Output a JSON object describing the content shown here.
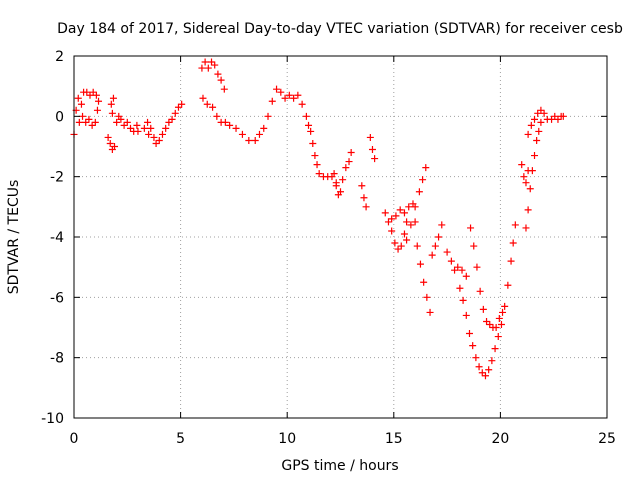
{
  "chart_data": {
    "type": "scatter",
    "title": "Day 184 of 2017, Sidereal Day-to-day VTEC variation (SDTVAR) for receiver cesb",
    "xlabel": "GPS time / hours",
    "ylabel": "SDTVAR / TECUs",
    "xlim": [
      0,
      25
    ],
    "ylim": [
      -10,
      2
    ],
    "xticks": [
      0,
      5,
      10,
      15,
      20,
      25
    ],
    "yticks": [
      -10,
      -8,
      -6,
      -4,
      -2,
      0,
      2
    ],
    "grid": true,
    "marker": "+",
    "color": "#ff0000",
    "segments": [
      [
        [
          0.0,
          -0.6
        ],
        [
          0.1,
          0.2
        ],
        [
          0.2,
          0.6
        ],
        [
          0.35,
          0.4
        ],
        [
          0.45,
          0.8
        ],
        [
          0.6,
          0.8
        ],
        [
          0.75,
          0.7
        ],
        [
          0.9,
          0.8
        ],
        [
          1.05,
          0.7
        ],
        [
          1.15,
          0.5
        ]
      ],
      [
        [
          0.25,
          -0.2
        ],
        [
          0.4,
          0.0
        ],
        [
          0.55,
          -0.2
        ],
        [
          0.7,
          -0.1
        ],
        [
          0.85,
          -0.3
        ],
        [
          1.0,
          -0.2
        ],
        [
          1.1,
          0.2
        ]
      ],
      [
        [
          1.6,
          -0.7
        ],
        [
          1.7,
          -0.9
        ],
        [
          1.8,
          -1.1
        ],
        [
          1.9,
          -1.0
        ]
      ],
      [
        [
          1.75,
          0.4
        ],
        [
          1.8,
          0.1
        ],
        [
          1.85,
          0.6
        ]
      ],
      [
        [
          2.0,
          -0.2
        ],
        [
          2.1,
          0.0
        ],
        [
          2.2,
          -0.1
        ],
        [
          2.35,
          -0.3
        ],
        [
          2.5,
          -0.2
        ],
        [
          2.65,
          -0.4
        ],
        [
          2.8,
          -0.5
        ],
        [
          2.95,
          -0.3
        ],
        [
          3.0,
          -0.5
        ]
      ],
      [
        [
          3.3,
          -0.4
        ],
        [
          3.45,
          -0.2
        ],
        [
          3.5,
          -0.6
        ]
      ],
      [
        [
          3.6,
          -0.4
        ],
        [
          3.75,
          -0.7
        ],
        [
          3.85,
          -0.9
        ],
        [
          4.0,
          -0.8
        ],
        [
          4.15,
          -0.6
        ],
        [
          4.3,
          -0.4
        ],
        [
          4.45,
          -0.2
        ],
        [
          4.6,
          -0.1
        ],
        [
          4.75,
          0.1
        ],
        [
          4.9,
          0.3
        ],
        [
          5.05,
          0.4
        ]
      ],
      [
        [
          6.0,
          1.6
        ],
        [
          6.15,
          1.8
        ],
        [
          6.3,
          1.6
        ],
        [
          6.45,
          1.8
        ],
        [
          6.6,
          1.7
        ],
        [
          6.75,
          1.4
        ],
        [
          6.9,
          1.2
        ],
        [
          7.05,
          0.9
        ]
      ],
      [
        [
          6.05,
          0.6
        ],
        [
          6.25,
          0.4
        ],
        [
          6.5,
          0.3
        ],
        [
          6.7,
          0.0
        ],
        [
          6.9,
          -0.2
        ],
        [
          7.1,
          -0.2
        ],
        [
          7.3,
          -0.3
        ],
        [
          7.6,
          -0.4
        ],
        [
          7.9,
          -0.6
        ],
        [
          8.2,
          -0.8
        ],
        [
          8.5,
          -0.8
        ],
        [
          8.7,
          -0.6
        ],
        [
          8.9,
          -0.4
        ],
        [
          9.1,
          0.0
        ],
        [
          9.3,
          0.5
        ],
        [
          9.5,
          0.9
        ],
        [
          9.7,
          0.8
        ],
        [
          9.9,
          0.6
        ],
        [
          10.1,
          0.7
        ],
        [
          10.3,
          0.6
        ],
        [
          10.5,
          0.7
        ],
        [
          10.7,
          0.4
        ],
        [
          10.9,
          0.0
        ],
        [
          11.0,
          -0.3
        ],
        [
          11.1,
          -0.5
        ],
        [
          11.2,
          -0.9
        ],
        [
          11.3,
          -1.3
        ],
        [
          11.4,
          -1.6
        ],
        [
          11.5,
          -1.9
        ],
        [
          11.7,
          -2.0
        ],
        [
          11.9,
          -2.0
        ],
        [
          12.1,
          -2.0
        ],
        [
          12.3,
          -2.2
        ],
        [
          12.5,
          -2.5
        ],
        [
          12.6,
          -2.1
        ],
        [
          12.75,
          -1.7
        ],
        [
          12.9,
          -1.5
        ],
        [
          13.0,
          -1.2
        ]
      ],
      [
        [
          12.2,
          -1.9
        ],
        [
          12.3,
          -2.3
        ],
        [
          12.4,
          -2.6
        ]
      ],
      [
        [
          13.5,
          -2.3
        ],
        [
          13.6,
          -2.7
        ],
        [
          13.7,
          -3.0
        ]
      ],
      [
        [
          13.9,
          -0.7
        ],
        [
          14.0,
          -1.1
        ],
        [
          14.1,
          -1.4
        ]
      ],
      [
        [
          14.6,
          -3.2
        ],
        [
          14.75,
          -3.5
        ],
        [
          14.9,
          -3.8
        ],
        [
          15.05,
          -4.2
        ],
        [
          15.2,
          -4.4
        ],
        [
          15.35,
          -4.3
        ],
        [
          15.5,
          -3.9
        ],
        [
          15.6,
          -3.5
        ]
      ],
      [
        [
          14.9,
          -3.4
        ],
        [
          15.1,
          -3.3
        ],
        [
          15.3,
          -3.1
        ],
        [
          15.5,
          -3.2
        ],
        [
          15.7,
          -3.0
        ],
        [
          15.9,
          -2.9
        ],
        [
          16.0,
          -3.5
        ],
        [
          16.1,
          -4.3
        ],
        [
          16.25,
          -4.9
        ],
        [
          16.4,
          -5.5
        ],
        [
          16.55,
          -6.0
        ],
        [
          16.7,
          -6.5
        ]
      ],
      [
        [
          15.6,
          -4.1
        ],
        [
          15.8,
          -3.6
        ],
        [
          16.0,
          -3.0
        ],
        [
          16.2,
          -2.5
        ],
        [
          16.35,
          -2.1
        ],
        [
          16.5,
          -1.7
        ]
      ],
      [
        [
          16.8,
          -4.6
        ],
        [
          16.95,
          -4.3
        ],
        [
          17.1,
          -4.0
        ],
        [
          17.25,
          -3.6
        ]
      ],
      [
        [
          17.5,
          -4.5
        ],
        [
          17.7,
          -4.8
        ],
        [
          17.85,
          -5.1
        ],
        [
          18.0,
          -5.0
        ],
        [
          18.2,
          -5.1
        ],
        [
          18.4,
          -5.3
        ]
      ],
      [
        [
          18.1,
          -5.7
        ],
        [
          18.25,
          -6.1
        ],
        [
          18.4,
          -6.6
        ],
        [
          18.55,
          -7.2
        ],
        [
          18.7,
          -7.6
        ],
        [
          18.85,
          -8.0
        ],
        [
          19.0,
          -8.3
        ],
        [
          19.15,
          -8.5
        ],
        [
          19.3,
          -8.6
        ],
        [
          19.45,
          -8.4
        ],
        [
          19.6,
          -8.1
        ],
        [
          19.75,
          -7.7
        ],
        [
          19.9,
          -7.3
        ],
        [
          20.05,
          -6.9
        ],
        [
          20.2,
          -6.3
        ],
        [
          20.35,
          -5.6
        ],
        [
          20.5,
          -4.8
        ],
        [
          20.6,
          -4.2
        ],
        [
          20.7,
          -3.6
        ]
      ],
      [
        [
          18.6,
          -3.7
        ],
        [
          18.75,
          -4.3
        ],
        [
          18.9,
          -5.0
        ],
        [
          19.05,
          -5.8
        ],
        [
          19.2,
          -6.4
        ],
        [
          19.35,
          -6.8
        ],
        [
          19.5,
          -6.9
        ],
        [
          19.65,
          -7.0
        ],
        [
          19.8,
          -7.0
        ],
        [
          19.95,
          -6.7
        ],
        [
          20.1,
          -6.5
        ]
      ],
      [
        [
          21.0,
          -1.6
        ],
        [
          21.1,
          -2.0
        ],
        [
          21.2,
          -2.2
        ],
        [
          21.3,
          -1.8
        ]
      ],
      [
        [
          21.2,
          -3.7
        ],
        [
          21.3,
          -3.1
        ],
        [
          21.4,
          -2.4
        ],
        [
          21.5,
          -1.8
        ],
        [
          21.6,
          -1.3
        ],
        [
          21.7,
          -0.8
        ],
        [
          21.8,
          -0.5
        ],
        [
          21.9,
          -0.2
        ]
      ],
      [
        [
          21.3,
          -0.6
        ],
        [
          21.45,
          -0.3
        ],
        [
          21.6,
          -0.1
        ],
        [
          21.75,
          0.1
        ],
        [
          21.9,
          0.2
        ],
        [
          22.05,
          0.1
        ],
        [
          22.2,
          -0.1
        ],
        [
          22.4,
          -0.1
        ],
        [
          22.55,
          0.0
        ],
        [
          22.7,
          -0.1
        ],
        [
          22.85,
          0.0
        ],
        [
          22.95,
          0.0
        ]
      ]
    ]
  }
}
